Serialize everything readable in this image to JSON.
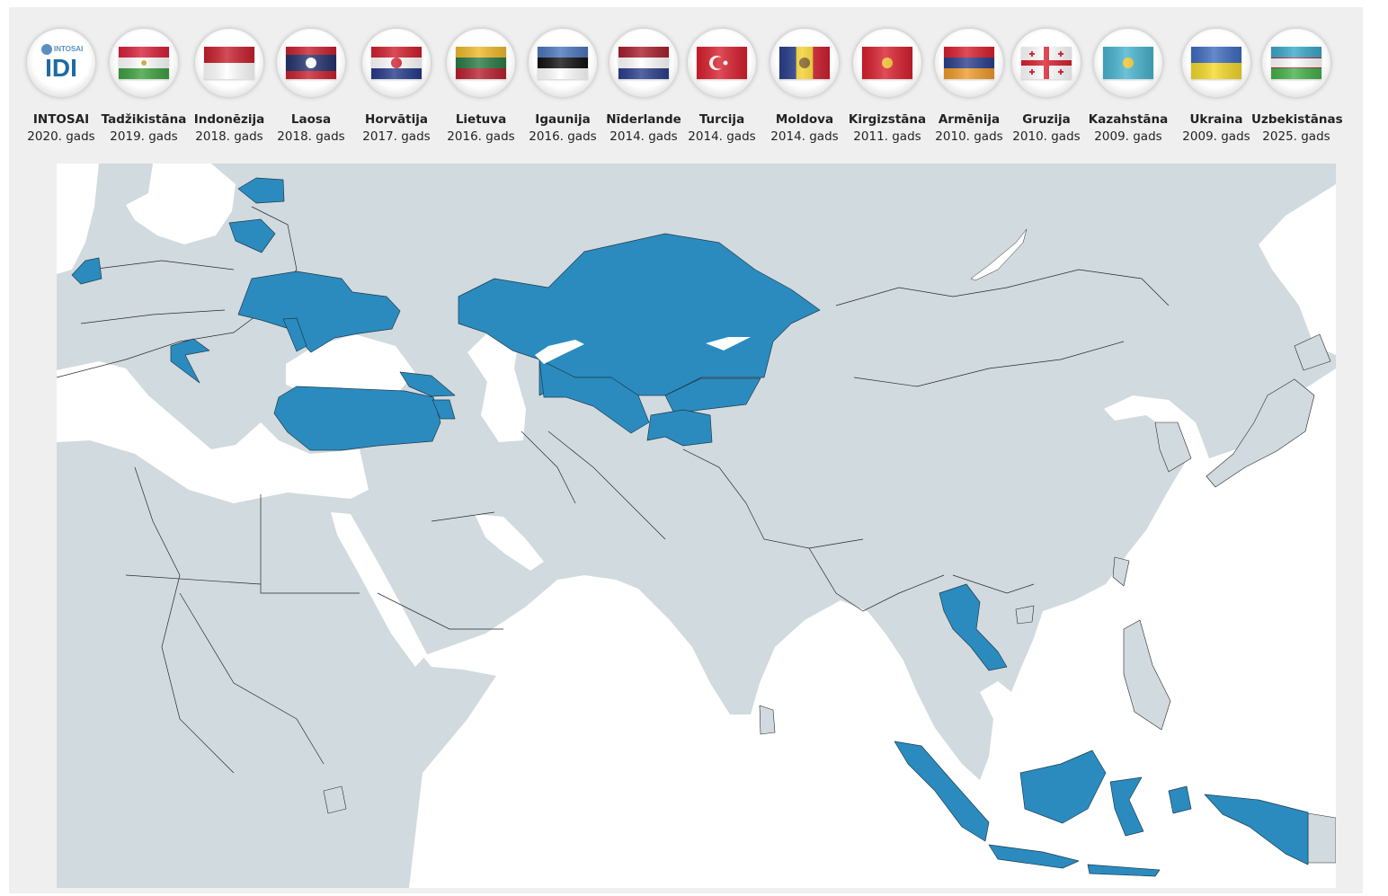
{
  "colors": {
    "land": "#d1dade",
    "sea": "#ffffff",
    "highlight": "#2b8bbf",
    "border": "#2a2a2a",
    "panel": "#efefef"
  },
  "partners": [
    {
      "name": "INTOSAI",
      "year": "2020. gads",
      "logo_text": "IDI",
      "logo_subtext": "INTOSAI",
      "flag": {
        "type": "logo"
      }
    },
    {
      "name": "Tadžikistāna",
      "year": "2019. gads",
      "flag": {
        "type": "h",
        "stripes": [
          "#d8213a",
          "#ffffff",
          "#3ea041"
        ],
        "emblem": "#c9a21e"
      }
    },
    {
      "name": "Indonēzija",
      "year": "2018. gads",
      "flag": {
        "type": "h",
        "stripes": [
          "#c8202e",
          "#ffffff"
        ]
      }
    },
    {
      "name": "Laosa",
      "year": "2018. gads",
      "flag": {
        "type": "h",
        "stripes": [
          "#c8202e",
          "#24336e",
          "#24336e",
          "#c8202e"
        ],
        "emblem": "#ffffff"
      }
    },
    {
      "name": "Horvātija",
      "year": "2017. gads",
      "flag": {
        "type": "h",
        "stripes": [
          "#d0202e",
          "#ffffff",
          "#253a8a"
        ],
        "emblem": "#d0202e"
      }
    },
    {
      "name": "Lietuva",
      "year": "2016. gads",
      "flag": {
        "type": "h",
        "stripes": [
          "#f0b92a",
          "#2a7a45",
          "#b8202e"
        ]
      }
    },
    {
      "name": "Igaunija",
      "year": "2016. gads",
      "flag": {
        "type": "h",
        "stripes": [
          "#4b76bd",
          "#111111",
          "#ffffff"
        ]
      }
    },
    {
      "name": "Nīderlande",
      "year": "2014. gads",
      "flag": {
        "type": "h",
        "stripes": [
          "#a8202e",
          "#ffffff",
          "#2a3f8c"
        ]
      }
    },
    {
      "name": "Turcija",
      "year": "2014. gads",
      "flag": {
        "type": "h",
        "stripes": [
          "#d8202e"
        ],
        "emblem": "#ffffff"
      }
    },
    {
      "name": "Moldova",
      "year": "2014. gads",
      "flag": {
        "type": "v",
        "stripes": [
          "#2a3f8c",
          "#f4d02a",
          "#d0202e"
        ],
        "emblem": "#7a5a20"
      }
    },
    {
      "name": "Kirgizstāna",
      "year": "2011. gads",
      "flag": {
        "type": "h",
        "stripes": [
          "#d8202e"
        ],
        "emblem": "#f0b92a"
      }
    },
    {
      "name": "Armēnija",
      "year": "2010. gads",
      "flag": {
        "type": "h",
        "stripes": [
          "#d8202e",
          "#2a3f8c",
          "#f09a2a"
        ]
      }
    },
    {
      "name": "Gruzija",
      "year": "2010. gads",
      "flag": {
        "type": "georgia",
        "stripes": [
          "#ffffff"
        ],
        "emblem": "#d8202e"
      }
    },
    {
      "name": "Kazahstāna",
      "year": "2009. gads",
      "flag": {
        "type": "h",
        "stripes": [
          "#48b4cf"
        ],
        "emblem": "#f0c42a"
      }
    },
    {
      "name": "Ukraina",
      "year": "2009. gads",
      "flag": {
        "type": "h",
        "stripes": [
          "#3f6cbf",
          "#f4d92a"
        ]
      }
    },
    {
      "name": "Uzbekistānas",
      "year": "2025. gads",
      "flag": {
        "type": "h",
        "stripes": [
          "#3aa7c9",
          "#ffffff",
          "#44b04a"
        ]
      }
    }
  ],
  "highlighted_countries": [
    "Estonia",
    "Lithuania",
    "Netherlands",
    "Ukraine",
    "Moldova",
    "Croatia",
    "Turkey",
    "Georgia",
    "Armenia",
    "Kazakhstan",
    "Uzbekistan",
    "Kyrgyzstan",
    "Tajikistan",
    "Laos",
    "Indonesia"
  ]
}
